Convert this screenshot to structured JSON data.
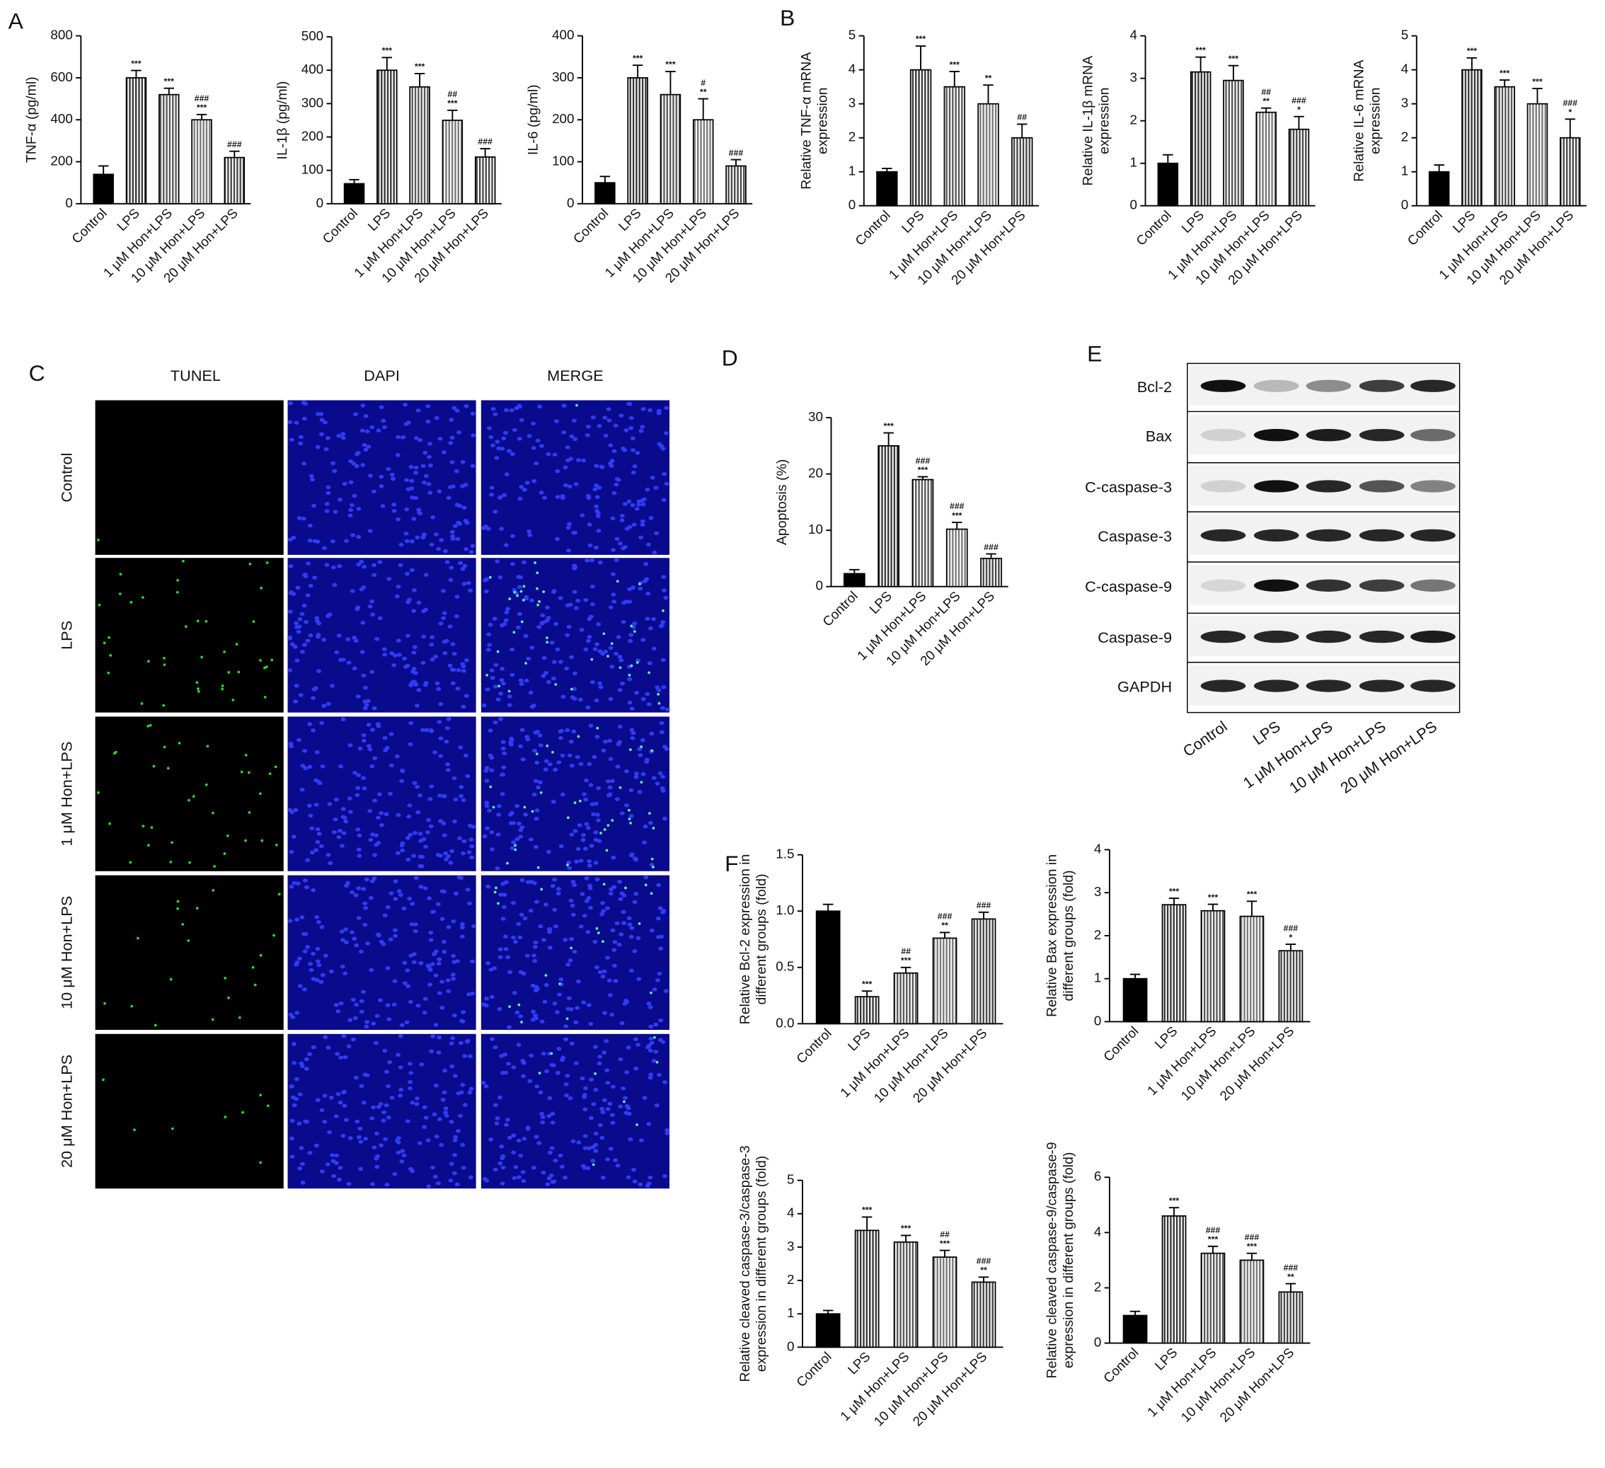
{
  "panel_labels": [
    "A",
    "B",
    "C",
    "D",
    "E",
    "F"
  ],
  "tunel": {
    "columns": [
      "TUNEL",
      "DAPI",
      "MERGE"
    ],
    "rows": [
      "Control",
      "LPS",
      "1 μM Hon+LPS",
      "10 μM Hon+LPS",
      "20 μM Hon+LPS"
    ]
  },
  "western_blot": {
    "bands": [
      "Bcl-2",
      "Bax",
      "C-caspase-3",
      "Caspase-3",
      "C-caspase-9",
      "Caspase-9",
      "GAPDH"
    ],
    "lanes": [
      "Control",
      "LPS",
      "1 μM Hon+LPS",
      "10 μM Hon+LPS",
      "20 μM Hon+LPS"
    ]
  },
  "chart_data": [
    {
      "type": "bar",
      "ylabel": [
        "TNF-α (pg/ml)"
      ],
      "categories": [
        "Control",
        "LPS",
        "1 μM Hon+LPS",
        "10 μM Hon+LPS",
        "20 μM Hon+LPS"
      ],
      "values": [
        140,
        600,
        520,
        400,
        220
      ],
      "errors": [
        40,
        35,
        30,
        25,
        30
      ],
      "annotations": [
        [],
        [
          "***"
        ],
        [
          "***"
        ],
        [
          "###",
          "***"
        ],
        [
          "###"
        ]
      ],
      "colors": [
        "#000000",
        "#333333",
        "#555555",
        "#777777",
        "#444444"
      ],
      "hatch": [
        false,
        true,
        true,
        true,
        true
      ],
      "ylim": [
        0,
        800
      ],
      "yticks": [
        0,
        200,
        400,
        600,
        800
      ]
    },
    {
      "type": "bar",
      "ylabel": [
        "IL-1β (pg/ml)"
      ],
      "categories": [
        "Control",
        "LPS",
        "1 μM Hon+LPS",
        "10 μM Hon+LPS",
        "20 μM Hon+LPS"
      ],
      "values": [
        60,
        400,
        350,
        250,
        140
      ],
      "errors": [
        12,
        38,
        40,
        30,
        25
      ],
      "annotations": [
        [],
        [
          "***"
        ],
        [
          "***"
        ],
        [
          "##",
          "***"
        ],
        [
          "###"
        ]
      ],
      "colors": [
        "#000000",
        "#333333",
        "#555555",
        "#777777",
        "#444444"
      ],
      "hatch": [
        false,
        true,
        true,
        true,
        true
      ],
      "ylim": [
        0,
        500
      ],
      "yticks": [
        0,
        100,
        200,
        300,
        400,
        500
      ]
    },
    {
      "type": "bar",
      "ylabel": [
        "IL-6 (pg/ml)"
      ],
      "categories": [
        "Control",
        "LPS",
        "1 μM Hon+LPS",
        "10 μM Hon+LPS",
        "20 μM Hon+LPS"
      ],
      "values": [
        50,
        300,
        260,
        200,
        90
      ],
      "errors": [
        15,
        30,
        55,
        50,
        15
      ],
      "annotations": [
        [],
        [
          "***"
        ],
        [
          "***"
        ],
        [
          "#",
          "**"
        ],
        [
          "###"
        ]
      ],
      "colors": [
        "#000000",
        "#333333",
        "#555555",
        "#777777",
        "#444444"
      ],
      "hatch": [
        false,
        true,
        true,
        true,
        true
      ],
      "ylim": [
        0,
        400
      ],
      "yticks": [
        0,
        100,
        200,
        300,
        400
      ]
    },
    {
      "type": "bar",
      "ylabel": [
        "Relative TNF-α mRNA",
        "expression"
      ],
      "categories": [
        "Control",
        "LPS",
        "1 μM Hon+LPS",
        "10 μM Hon+LPS",
        "20 μM Hon+LPS"
      ],
      "values": [
        1,
        4,
        3.5,
        3,
        2
      ],
      "errors": [
        0.1,
        0.7,
        0.45,
        0.55,
        0.4
      ],
      "annotations": [
        [],
        [
          "***"
        ],
        [
          "***"
        ],
        [
          "**"
        ],
        [
          "##"
        ]
      ],
      "colors": [
        "#000000",
        "#333333",
        "#555555",
        "#777777",
        "#444444"
      ],
      "hatch": [
        false,
        true,
        true,
        true,
        true
      ],
      "ylim": [
        0,
        5
      ],
      "yticks": [
        0,
        1,
        2,
        3,
        4,
        5
      ]
    },
    {
      "type": "bar",
      "ylabel": [
        "Relative IL-1β mRNA",
        "expression"
      ],
      "categories": [
        "Control",
        "LPS",
        "1 μM Hon+LPS",
        "10 μM Hon+LPS",
        "20 μM Hon+LPS"
      ],
      "values": [
        1,
        3.15,
        2.95,
        2.2,
        1.8
      ],
      "errors": [
        0.2,
        0.35,
        0.35,
        0.1,
        0.3
      ],
      "annotations": [
        [],
        [
          "***"
        ],
        [
          "***"
        ],
        [
          "##",
          "**"
        ],
        [
          "###",
          "*"
        ]
      ],
      "colors": [
        "#000000",
        "#333333",
        "#555555",
        "#777777",
        "#444444"
      ],
      "hatch": [
        false,
        true,
        true,
        true,
        true
      ],
      "ylim": [
        0,
        4
      ],
      "yticks": [
        0,
        1,
        2,
        3,
        4
      ]
    },
    {
      "type": "bar",
      "ylabel": [
        "Relative IL-6 mRNA",
        "expression"
      ],
      "categories": [
        "Control",
        "LPS",
        "1 μM Hon+LPS",
        "10 μM Hon+LPS",
        "20 μM Hon+LPS"
      ],
      "values": [
        1,
        4,
        3.5,
        3,
        2
      ],
      "errors": [
        0.2,
        0.35,
        0.2,
        0.45,
        0.55
      ],
      "annotations": [
        [],
        [
          "***"
        ],
        [
          "***"
        ],
        [
          "***"
        ],
        [
          "###",
          "*"
        ]
      ],
      "colors": [
        "#000000",
        "#333333",
        "#555555",
        "#777777",
        "#444444"
      ],
      "hatch": [
        false,
        true,
        true,
        true,
        true
      ],
      "ylim": [
        0,
        5
      ],
      "yticks": [
        0,
        1,
        2,
        3,
        4,
        5
      ]
    },
    {
      "type": "bar",
      "ylabel": [
        "Apoptosis (%)"
      ],
      "categories": [
        "Control",
        "LPS",
        "1 μM Hon+LPS",
        "10 μM Hon+LPS",
        "20 μM Hon+LPS"
      ],
      "values": [
        2.3,
        25,
        19,
        10.2,
        5
      ],
      "errors": [
        0.7,
        2.3,
        0.5,
        1.2,
        0.8
      ],
      "annotations": [
        [],
        [
          "***"
        ],
        [
          "###",
          "***"
        ],
        [
          "###",
          "***"
        ],
        [
          "###"
        ]
      ],
      "colors": [
        "#000000",
        "#333333",
        "#555555",
        "#777777",
        "#444444"
      ],
      "hatch": [
        false,
        true,
        true,
        true,
        true
      ],
      "ylim": [
        0,
        30
      ],
      "yticks": [
        0,
        10,
        20,
        30
      ]
    },
    {
      "type": "bar",
      "ylabel": [
        "Relative Bcl-2 expression in",
        "different groups (fold)"
      ],
      "categories": [
        "Control",
        "LPS",
        "1 μM Hon+LPS",
        "10 μM Hon+LPS",
        "20 μM Hon+LPS"
      ],
      "values": [
        1.0,
        0.24,
        0.45,
        0.76,
        0.93
      ],
      "errors": [
        0.06,
        0.05,
        0.05,
        0.05,
        0.06
      ],
      "annotations": [
        [],
        [
          "***"
        ],
        [
          "##",
          "***"
        ],
        [
          "###",
          "**"
        ],
        [
          "###"
        ]
      ],
      "colors": [
        "#000000",
        "#333333",
        "#555555",
        "#777777",
        "#444444"
      ],
      "hatch": [
        false,
        true,
        true,
        true,
        true
      ],
      "ylim": [
        0,
        1.5
      ],
      "yticks": [
        {
          "value": 0,
          "label": "0.0"
        },
        {
          "value": 0.5,
          "label": "0.5"
        },
        {
          "value": 1,
          "label": "1.0"
        },
        {
          "value": 1.5,
          "label": "1.5"
        }
      ]
    },
    {
      "type": "bar",
      "ylabel": [
        "Relative Bax expression in",
        "different groups (fold)"
      ],
      "categories": [
        "Control",
        "LPS",
        "1 μM Hon+LPS",
        "10 μM Hon+LPS",
        "20 μM Hon+LPS"
      ],
      "values": [
        1,
        2.72,
        2.58,
        2.45,
        1.65
      ],
      "errors": [
        0.1,
        0.15,
        0.15,
        0.35,
        0.15
      ],
      "annotations": [
        [],
        [
          "***"
        ],
        [
          "***"
        ],
        [
          "***"
        ],
        [
          "###",
          "*"
        ]
      ],
      "colors": [
        "#000000",
        "#333333",
        "#555555",
        "#777777",
        "#444444"
      ],
      "hatch": [
        false,
        true,
        true,
        true,
        true
      ],
      "ylim": [
        0,
        4
      ],
      "yticks": [
        0,
        1,
        2,
        3,
        4
      ]
    },
    {
      "type": "bar",
      "ylabel": [
        "Relative cleaved caspase-3/caspase-3",
        "expression in different groups (fold)"
      ],
      "categories": [
        "Control",
        "LPS",
        "1 μM Hon+LPS",
        "10 μM Hon+LPS",
        "20 μM Hon+LPS"
      ],
      "values": [
        1,
        3.5,
        3.15,
        2.7,
        1.95
      ],
      "errors": [
        0.1,
        0.4,
        0.2,
        0.2,
        0.15
      ],
      "annotations": [
        [],
        [
          "***"
        ],
        [
          "***"
        ],
        [
          "##",
          "***"
        ],
        [
          "###",
          "**"
        ]
      ],
      "colors": [
        "#000000",
        "#333333",
        "#555555",
        "#777777",
        "#444444"
      ],
      "hatch": [
        false,
        true,
        true,
        true,
        true
      ],
      "ylim": [
        0,
        5
      ],
      "yticks": [
        0,
        1,
        2,
        3,
        4,
        5
      ]
    },
    {
      "type": "bar",
      "ylabel": [
        "Relative cleaved caspase-9/caspase-9",
        "expression in different groups (fold)"
      ],
      "categories": [
        "Control",
        "LPS",
        "1 μM Hon+LPS",
        "10 μM Hon+LPS",
        "20 μM Hon+LPS"
      ],
      "values": [
        1,
        4.6,
        3.25,
        3.0,
        1.85
      ],
      "errors": [
        0.15,
        0.3,
        0.25,
        0.25,
        0.3
      ],
      "annotations": [
        [],
        [
          "***"
        ],
        [
          "###",
          "***"
        ],
        [
          "###",
          "***"
        ],
        [
          "###",
          "**"
        ]
      ],
      "colors": [
        "#000000",
        "#333333",
        "#555555",
        "#777777",
        "#444444"
      ],
      "hatch": [
        false,
        true,
        true,
        true,
        true
      ],
      "ylim": [
        0,
        6
      ],
      "yticks": [
        0,
        2,
        4,
        6
      ]
    }
  ]
}
